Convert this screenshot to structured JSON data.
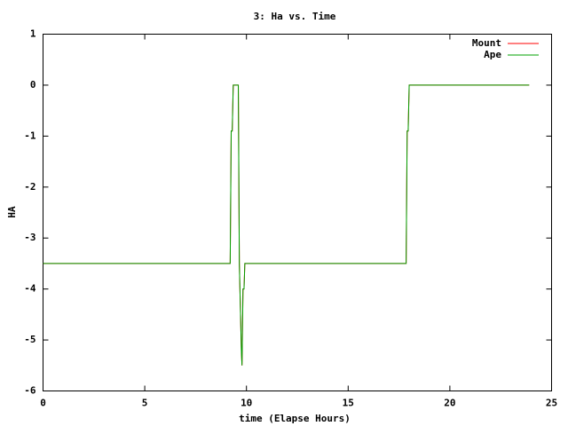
{
  "chart_data": {
    "type": "line",
    "title": "3: Ha vs. Time",
    "x_label": "time (Elapse Hours)",
    "y_label": "HA",
    "series": [
      {
        "name": "Mount",
        "color": "#ff0000",
        "x": [
          0,
          9.2,
          9.25,
          9.3,
          9.35,
          9.6,
          9.65,
          9.75,
          9.78,
          9.83,
          9.88,
          9.92,
          17.85,
          17.9,
          17.95,
          18.0,
          23.9
        ],
        "values": [
          -3.5,
          -3.5,
          -0.9,
          -0.9,
          0,
          0,
          -3.5,
          -5.2,
          -5.5,
          -4.0,
          -4.0,
          -3.5,
          -3.5,
          -0.9,
          -0.9,
          0,
          0
        ]
      },
      {
        "name": "Ape",
        "color": "#00a000",
        "x": [
          0,
          9.2,
          9.25,
          9.3,
          9.35,
          9.6,
          9.65,
          9.75,
          9.78,
          9.83,
          9.88,
          9.92,
          17.85,
          17.9,
          17.95,
          18.0,
          23.9
        ],
        "values": [
          -3.5,
          -3.5,
          -0.9,
          -0.9,
          0,
          0,
          -3.5,
          -5.2,
          -5.5,
          -4.0,
          -4.0,
          -3.5,
          -3.5,
          -0.9,
          -0.9,
          0,
          0
        ]
      }
    ],
    "xlim": [
      0,
      25
    ],
    "xticks": [
      0,
      5,
      10,
      15,
      20,
      25
    ],
    "ylim": [
      -6,
      1
    ],
    "yticks": [
      -6,
      -5,
      -4,
      -3,
      -2,
      -1,
      0,
      1
    ],
    "legend": "top-right",
    "grid": false
  }
}
